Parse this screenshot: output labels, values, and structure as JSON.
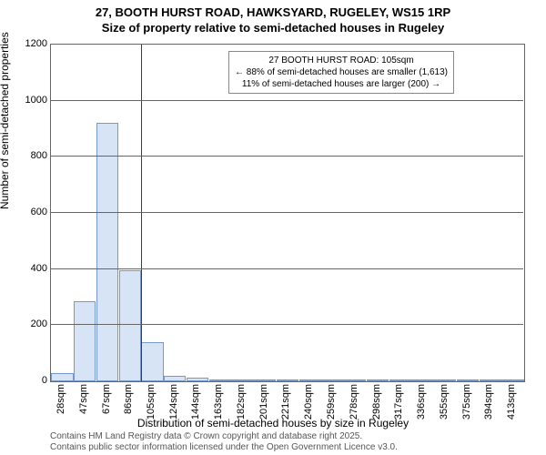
{
  "chart": {
    "title_line1": "27, BOOTH HURST ROAD, HAWKSYARD, RUGELEY, WS15 1RP",
    "title_line2": "Size of property relative to semi-detached houses in Rugeley",
    "ylabel": "Number of semi-detached properties",
    "xlabel": "Distribution of semi-detached houses by size in Rugeley",
    "type": "histogram",
    "ylim": [
      0,
      1200
    ],
    "ytick_step": 200,
    "yticks": [
      0,
      200,
      400,
      600,
      800,
      1000,
      1200
    ],
    "xtick_labels": [
      "28sqm",
      "47sqm",
      "67sqm",
      "86sqm",
      "105sqm",
      "124sqm",
      "144sqm",
      "163sqm",
      "182sqm",
      "201sqm",
      "221sqm",
      "240sqm",
      "259sqm",
      "278sqm",
      "298sqm",
      "317sqm",
      "336sqm",
      "355sqm",
      "375sqm",
      "394sqm",
      "413sqm"
    ],
    "values": [
      30,
      285,
      920,
      395,
      140,
      20,
      12,
      6,
      4,
      3,
      2,
      2,
      1,
      1,
      1,
      1,
      1,
      1,
      1,
      1,
      1
    ],
    "bar_fill": "#d6e4f5",
    "bar_stroke": "#7699c7",
    "grid_color": "#666666",
    "background_color": "#ffffff",
    "marker_position_index": 4,
    "marker_color": "#cc0000",
    "info_box": {
      "line1": "27 BOOTH HURST ROAD: 105sqm",
      "line2": "← 88% of semi-detached houses are smaller (1,613)",
      "line3": "11% of semi-detached houses are larger (200) →"
    },
    "footnote_line1": "Contains HM Land Registry data © Crown copyright and database right 2025.",
    "footnote_line2": "Contains public sector information licensed under the Open Government Licence v3.0.",
    "title_fontsize": 13,
    "label_fontsize": 12,
    "tick_fontsize": 11,
    "footnote_fontsize": 10
  }
}
